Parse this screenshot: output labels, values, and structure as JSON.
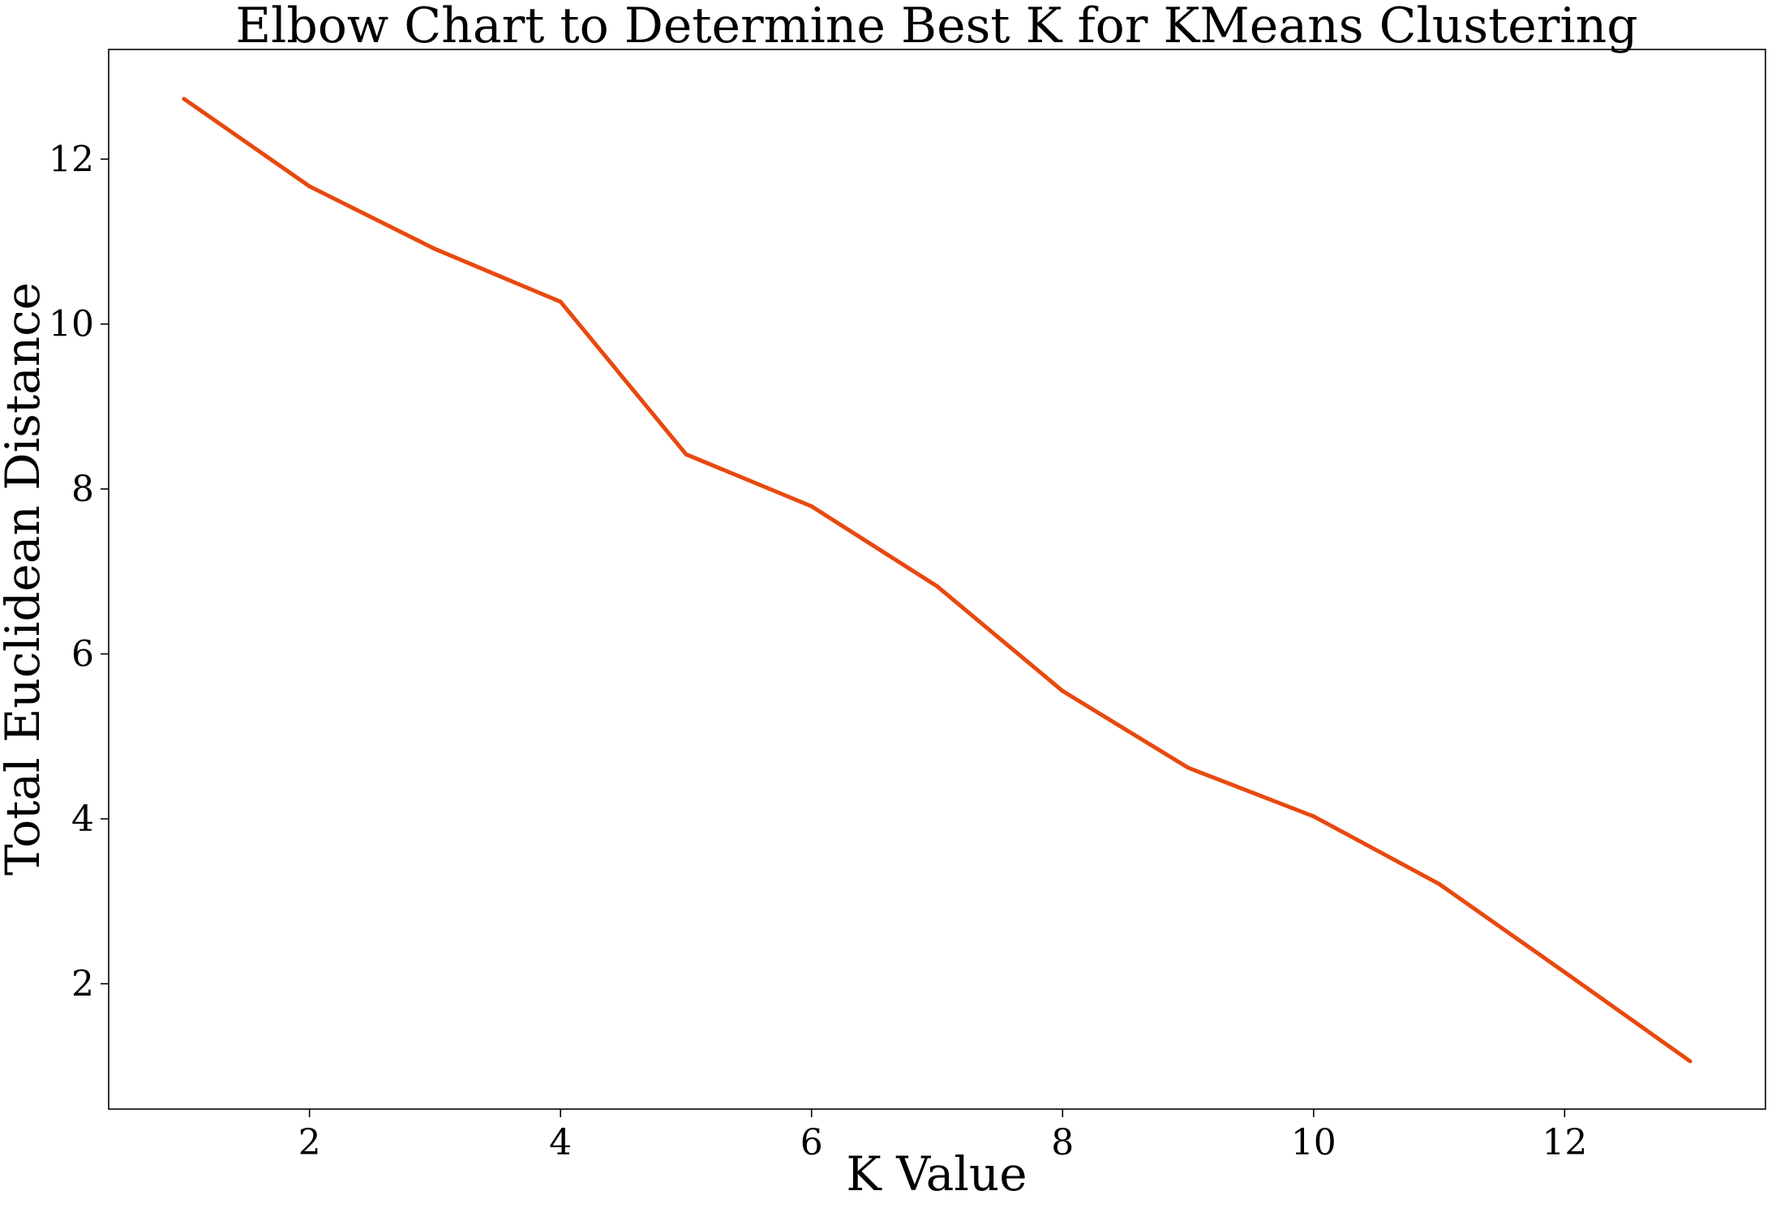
{
  "chart_data": {
    "type": "line",
    "title": "Elbow Chart to Determine Best K for KMeans Clustering",
    "xlabel": "K Value",
    "ylabel": "Total Euclidean Distance",
    "xlim": [
      0.4,
      13.6
    ],
    "ylim": [
      0.48,
      13.33
    ],
    "xticks": [
      2,
      4,
      6,
      8,
      10,
      12
    ],
    "yticks": [
      2,
      4,
      6,
      8,
      10,
      12
    ],
    "xtick_labels": [
      "2",
      "4",
      "6",
      "8",
      "10",
      "12"
    ],
    "ytick_labels": [
      "2",
      "4",
      "6",
      "8",
      "10",
      "12"
    ],
    "grid": false,
    "series": [
      {
        "color": "#e8490f",
        "x": [
          1,
          2,
          3,
          4,
          5,
          6,
          7,
          8,
          9,
          10,
          11,
          12,
          13
        ],
        "y": [
          12.73,
          11.67,
          10.91,
          10.27,
          8.42,
          7.79,
          6.82,
          5.55,
          4.62,
          4.03,
          3.21,
          2.14,
          1.06
        ]
      }
    ]
  }
}
